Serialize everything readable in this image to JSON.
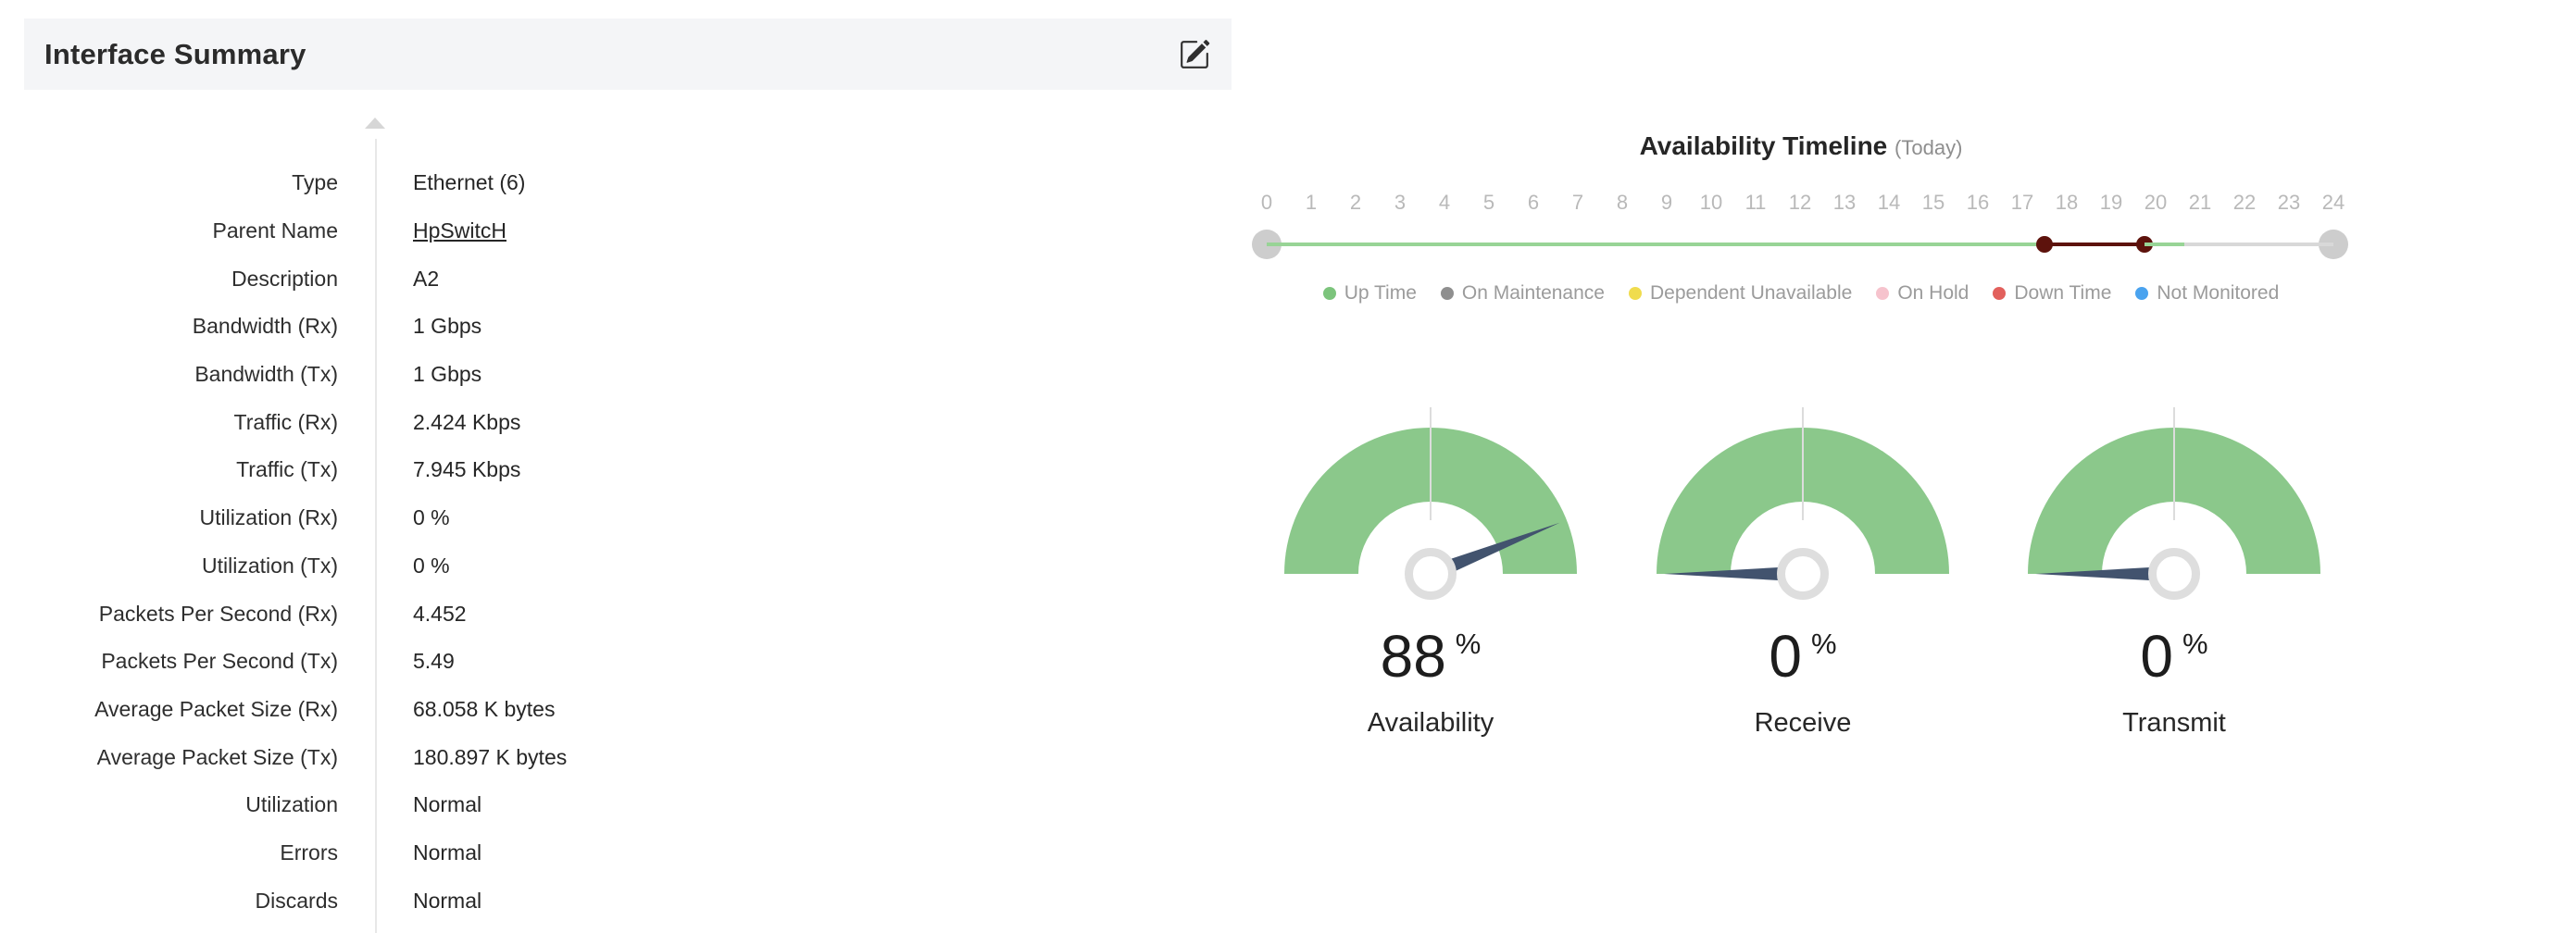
{
  "panel": {
    "title": "Interface Summary"
  },
  "summary": {
    "rows": [
      {
        "label": "Type",
        "value": "Ethernet (6)"
      },
      {
        "label": "Parent Name",
        "value": "HpSwitcH",
        "link": true
      },
      {
        "label": "Description",
        "value": "A2"
      },
      {
        "label": "Bandwidth (Rx)",
        "value": "1 Gbps"
      },
      {
        "label": "Bandwidth (Tx)",
        "value": "1 Gbps"
      },
      {
        "label": "Traffic (Rx)",
        "value": "2.424 Kbps"
      },
      {
        "label": "Traffic (Tx)",
        "value": "7.945 Kbps"
      },
      {
        "label": "Utilization (Rx)",
        "value": "0 %"
      },
      {
        "label": "Utilization (Tx)",
        "value": "0 %"
      },
      {
        "label": "Packets Per Second (Rx)",
        "value": "4.452"
      },
      {
        "label": "Packets Per Second (Tx)",
        "value": "5.49"
      },
      {
        "label": "Average Packet Size (Rx)",
        "value": "68.058 K bytes"
      },
      {
        "label": "Average Packet Size (Tx)",
        "value": "180.897 K bytes"
      },
      {
        "label": "Utilization",
        "value": "Normal"
      },
      {
        "label": "Errors",
        "value": "Normal"
      },
      {
        "label": "Discards",
        "value": "Normal"
      }
    ]
  },
  "timeline": {
    "title": "Availability Timeline",
    "subtitle": "(Today)",
    "hour_labels": [
      "0",
      "1",
      "2",
      "3",
      "4",
      "5",
      "6",
      "7",
      "8",
      "9",
      "10",
      "11",
      "12",
      "13",
      "14",
      "15",
      "16",
      "17",
      "18",
      "19",
      "20",
      "21",
      "22",
      "23",
      "24"
    ],
    "segments": [
      {
        "status": "up",
        "from": 0,
        "to": 17.5,
        "color": "#98d496"
      },
      {
        "status": "down",
        "from": 17.5,
        "to": 19.75,
        "color": "#5d120c",
        "markers": true
      },
      {
        "status": "up",
        "from": 19.75,
        "to": 20.65,
        "color": "#98d496"
      },
      {
        "status": "remaining",
        "from": 20.65,
        "to": 24,
        "color": "#d8d8d8"
      }
    ],
    "legend": [
      {
        "label": "Up Time",
        "color": "#7cc47c"
      },
      {
        "label": "On Maintenance",
        "color": "#8f8f8f"
      },
      {
        "label": "Dependent Unavailable",
        "color": "#f0dc4e"
      },
      {
        "label": "On Hold",
        "color": "#f6c3cd"
      },
      {
        "label": "Down Time",
        "color": "#e2605c"
      },
      {
        "label": "Not Monitored",
        "color": "#4aa3ef"
      }
    ]
  },
  "gauges": [
    {
      "value": "88",
      "unit": "%",
      "label": "Availability",
      "percent": 88
    },
    {
      "value": "0",
      "unit": "%",
      "label": "Receive",
      "percent": 0
    },
    {
      "value": "0",
      "unit": "%",
      "label": "Transmit",
      "percent": 0
    }
  ],
  "colors": {
    "header_bg": "#f4f5f7",
    "gauge_green": "#8bc88b",
    "needle": "#42536e",
    "hub_ring": "#dedede",
    "track_endcap": "#cdcdcd",
    "tick_text": "#b9b9b9",
    "legend_text": "#9b9b9b"
  },
  "chart_data": [
    {
      "type": "gauge",
      "title": "Availability",
      "value": 88,
      "unit": "%",
      "range": [
        0,
        100
      ]
    },
    {
      "type": "gauge",
      "title": "Receive",
      "value": 0,
      "unit": "%",
      "range": [
        0,
        100
      ]
    },
    {
      "type": "gauge",
      "title": "Transmit",
      "value": 0,
      "unit": "%",
      "range": [
        0,
        100
      ]
    },
    {
      "type": "timeline",
      "title": "Availability Timeline (Today)",
      "x": {
        "min": 0,
        "max": 24,
        "tick_step": 1
      },
      "segments": [
        {
          "status": "Up Time",
          "from": 0,
          "to": 17.5
        },
        {
          "status": "Down Time",
          "from": 17.5,
          "to": 19.75
        },
        {
          "status": "Up Time",
          "from": 19.75,
          "to": 20.65
        },
        {
          "status": "remaining-of-day",
          "from": 20.65,
          "to": 24
        }
      ],
      "legend": [
        "Up Time",
        "On Maintenance",
        "Dependent Unavailable",
        "On Hold",
        "Down Time",
        "Not Monitored"
      ]
    }
  ]
}
